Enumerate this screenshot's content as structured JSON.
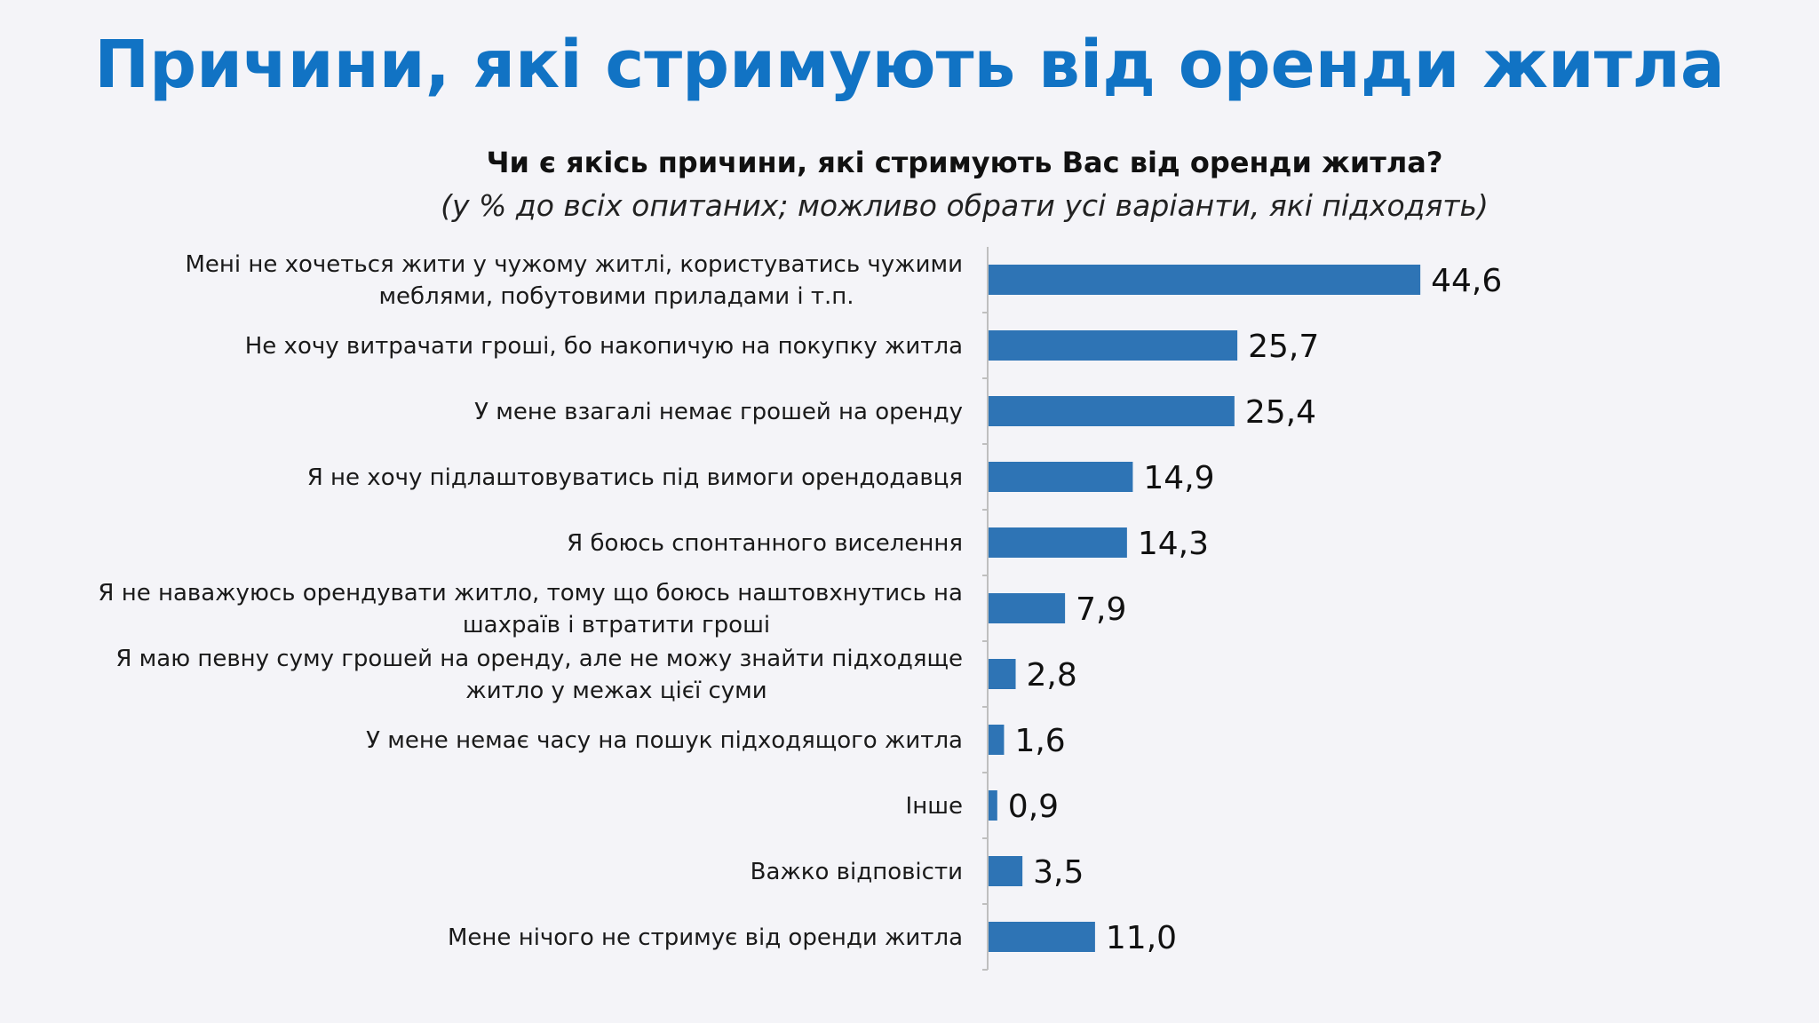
{
  "header": {
    "title": "Причини, які стримують від оренди житла"
  },
  "chart_data": {
    "type": "bar",
    "orientation": "horizontal",
    "title": "Чи є якісь причини, які стримують Вас від оренди житла?",
    "subtitle": "(у % до всіх опитаних; можливо обрати усі варіанти, які підходять)",
    "bar_color": "#2e74b5",
    "axis_color": "#bfbfbf",
    "xlim": [
      0,
      50
    ],
    "grid": false,
    "categories": [
      [
        "Мені не хочеться жити у чужому житлі, користуватись чужими",
        "меблями, побутовими приладами і т.п."
      ],
      [
        "Не хочу витрачати гроші, бо накопичую на покупку житла"
      ],
      [
        "У мене взагалі немає грошей на оренду"
      ],
      [
        "Я не хочу підлаштовуватись під вимоги орендодавця"
      ],
      [
        "Я боюсь спонтанного виселення"
      ],
      [
        "Я не наважуюсь орендувати житло, тому що боюсь наштовхнутись на",
        "шахраїв і втратити гроші"
      ],
      [
        "Я маю певну суму грошей на оренду, але не можу знайти підходяще",
        "житло у межах цієї суми"
      ],
      [
        "У мене немає часу на пошук підходящого житла"
      ],
      [
        "Інше"
      ],
      [
        "Важко відповісти"
      ],
      [
        "Мене нічого не стримує від оренди житла"
      ]
    ],
    "values": [
      44.6,
      25.7,
      25.4,
      14.9,
      14.3,
      7.9,
      2.8,
      1.6,
      0.9,
      3.5,
      11.0
    ],
    "value_labels": [
      "44,6",
      "25,7",
      "25,4",
      "14,9",
      "14,3",
      "7,9",
      "2,8",
      "1,6",
      "0,9",
      "3,5",
      "11,0"
    ]
  }
}
